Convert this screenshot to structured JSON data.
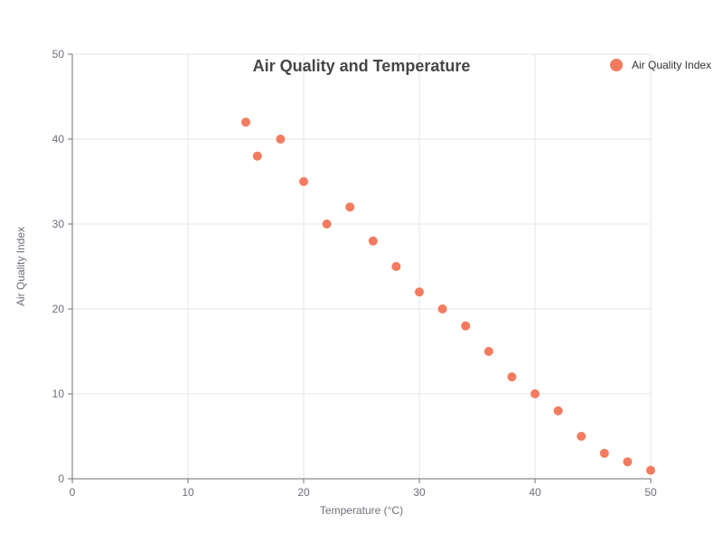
{
  "chart_data": {
    "type": "scatter",
    "title": "Air Quality and Temperature",
    "xlabel": "Temperature (°C)",
    "ylabel": "Air Quality Index",
    "xlim": [
      0,
      50
    ],
    "ylim": [
      0,
      50
    ],
    "xticks": [
      0,
      10,
      20,
      30,
      40,
      50
    ],
    "yticks": [
      0,
      10,
      20,
      30,
      40,
      50
    ],
    "grid": true,
    "legend_position": "top-right",
    "series": [
      {
        "name": "Air Quality Index",
        "color": "#f47b5f",
        "points": [
          {
            "x": 15,
            "y": 42
          },
          {
            "x": 16,
            "y": 38
          },
          {
            "x": 18,
            "y": 40
          },
          {
            "x": 20,
            "y": 35
          },
          {
            "x": 22,
            "y": 30
          },
          {
            "x": 24,
            "y": 32
          },
          {
            "x": 26,
            "y": 28
          },
          {
            "x": 28,
            "y": 25
          },
          {
            "x": 30,
            "y": 22
          },
          {
            "x": 32,
            "y": 20
          },
          {
            "x": 34,
            "y": 18
          },
          {
            "x": 36,
            "y": 15
          },
          {
            "x": 38,
            "y": 12
          },
          {
            "x": 40,
            "y": 10
          },
          {
            "x": 42,
            "y": 8
          },
          {
            "x": 44,
            "y": 5
          },
          {
            "x": 46,
            "y": 3
          },
          {
            "x": 48,
            "y": 2
          },
          {
            "x": 50,
            "y": 1
          }
        ]
      }
    ]
  }
}
